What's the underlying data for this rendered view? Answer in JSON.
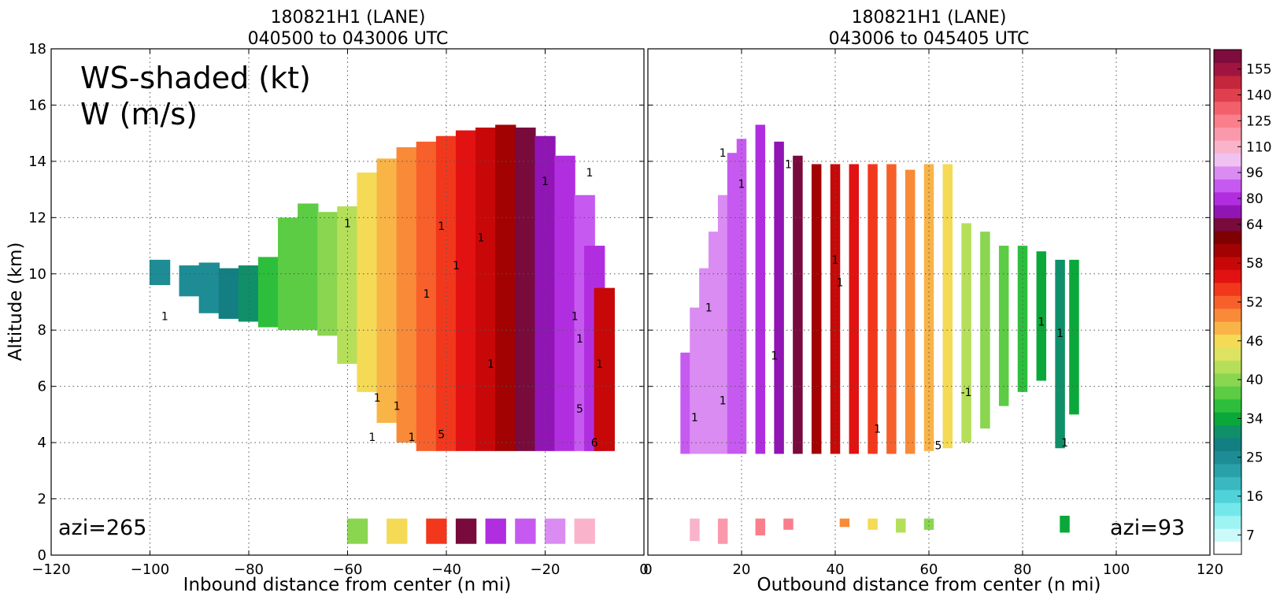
{
  "chart_data": [
    {
      "type": "heatmap",
      "title_line1": "180821H1 (LANE)",
      "title_line2": "040500 to 043006 UTC",
      "xlabel": "Inbound distance from center (n mi)",
      "ylabel": "Altitude (km)",
      "xlim": [
        -120,
        0
      ],
      "ylim": [
        0,
        18
      ],
      "xticks": [
        "−120",
        "−100",
        "−80",
        "−60",
        "−40",
        "−20",
        "0"
      ],
      "yticks": [
        "0",
        "2",
        "4",
        "6",
        "8",
        "10",
        "12",
        "14",
        "16",
        "18"
      ],
      "grid": true,
      "annotation_line1": "WS-shaded (kt)",
      "annotation_line2": "W (m/s)",
      "azimuth_label": "azi=265",
      "wind_speed_columns": [
        {
          "x": -98,
          "bottom": 9.6,
          "top": 10.5,
          "ws": 25
        },
        {
          "x": -92,
          "bottom": 9.2,
          "top": 10.3,
          "ws": 25
        },
        {
          "x": -88,
          "bottom": 8.6,
          "top": 10.4,
          "ws": 25
        },
        {
          "x": -84,
          "bottom": 8.4,
          "top": 10.2,
          "ws": 28
        },
        {
          "x": -80,
          "bottom": 8.3,
          "top": 10.3,
          "ws": 31
        },
        {
          "x": -76,
          "bottom": 8.1,
          "top": 10.6,
          "ws": 36
        },
        {
          "x": -72,
          "bottom": 8.0,
          "top": 12.0,
          "ws": 38
        },
        {
          "x": -68,
          "bottom": 8.0,
          "top": 12.5,
          "ws": 38
        },
        {
          "x": -64,
          "bottom": 7.8,
          "top": 12.2,
          "ws": 40
        },
        {
          "x": -60,
          "bottom": 6.8,
          "top": 12.4,
          "ws": 43
        },
        {
          "x": -56,
          "bottom": 5.8,
          "top": 13.6,
          "ws": 46
        },
        {
          "x": -52,
          "bottom": 4.7,
          "top": 14.1,
          "ws": 48
        },
        {
          "x": -48,
          "bottom": 4.0,
          "top": 14.5,
          "ws": 50
        },
        {
          "x": -44,
          "bottom": 3.7,
          "top": 14.7,
          "ws": 52
        },
        {
          "x": -40,
          "bottom": 3.7,
          "top": 14.9,
          "ws": 54
        },
        {
          "x": -36,
          "bottom": 3.7,
          "top": 15.1,
          "ws": 56
        },
        {
          "x": -32,
          "bottom": 3.7,
          "top": 15.2,
          "ws": 58
        },
        {
          "x": -28,
          "bottom": 3.7,
          "top": 15.3,
          "ws": 60
        },
        {
          "x": -24,
          "bottom": 3.7,
          "top": 15.2,
          "ws": 64
        },
        {
          "x": -20,
          "bottom": 3.7,
          "top": 14.9,
          "ws": 72
        },
        {
          "x": -16,
          "bottom": 3.7,
          "top": 14.2,
          "ws": 80
        },
        {
          "x": -12,
          "bottom": 3.7,
          "top": 12.8,
          "ws": 90
        },
        {
          "x": -10,
          "bottom": 3.7,
          "top": 11.0,
          "ws": 80
        },
        {
          "x": -8,
          "bottom": 3.7,
          "top": 9.5,
          "ws": 58
        }
      ],
      "low_level_columns": [
        {
          "x": -58,
          "bottom": 0.4,
          "top": 1.3,
          "ws": 40
        },
        {
          "x": -50,
          "bottom": 0.4,
          "top": 1.3,
          "ws": 46
        },
        {
          "x": -42,
          "bottom": 0.4,
          "top": 1.3,
          "ws": 54
        },
        {
          "x": -36,
          "bottom": 0.4,
          "top": 1.3,
          "ws": 64
        },
        {
          "x": -30,
          "bottom": 0.4,
          "top": 1.3,
          "ws": 80
        },
        {
          "x": -24,
          "bottom": 0.4,
          "top": 1.3,
          "ws": 90
        },
        {
          "x": -18,
          "bottom": 0.4,
          "top": 1.3,
          "ws": 96
        },
        {
          "x": -12,
          "bottom": 0.4,
          "top": 1.3,
          "ws": 110
        }
      ],
      "contour_labels": [
        {
          "x": -97,
          "y": 8.5,
          "text": "1"
        },
        {
          "x": -60,
          "y": 11.8,
          "text": "1"
        },
        {
          "x": -41,
          "y": 11.7,
          "text": "1"
        },
        {
          "x": -38,
          "y": 10.3,
          "text": "1"
        },
        {
          "x": -33,
          "y": 11.3,
          "text": "1"
        },
        {
          "x": -44,
          "y": 9.3,
          "text": "1"
        },
        {
          "x": -54,
          "y": 5.6,
          "text": "1"
        },
        {
          "x": -55,
          "y": 4.2,
          "text": "1"
        },
        {
          "x": -50,
          "y": 5.3,
          "text": "1"
        },
        {
          "x": -47,
          "y": 4.2,
          "text": "1"
        },
        {
          "x": -41,
          "y": 4.3,
          "text": "5"
        },
        {
          "x": -31,
          "y": 6.8,
          "text": "1"
        },
        {
          "x": -14,
          "y": 8.5,
          "text": "1"
        },
        {
          "x": -13,
          "y": 7.7,
          "text": "1"
        },
        {
          "x": -13,
          "y": 5.2,
          "text": "5"
        },
        {
          "x": -10,
          "y": 4.0,
          "text": "6"
        },
        {
          "x": -9,
          "y": 6.8,
          "text": "1"
        },
        {
          "x": -11,
          "y": 13.6,
          "text": "1"
        },
        {
          "x": -20,
          "y": 13.3,
          "text": "1"
        }
      ]
    },
    {
      "type": "heatmap",
      "title_line1": "180821H1 (LANE)",
      "title_line2": "043006 to 045405 UTC",
      "xlabel": "Outbound distance from center (n mi)",
      "xlim": [
        0,
        120
      ],
      "ylim": [
        0,
        18
      ],
      "xticks": [
        "0",
        "20",
        "40",
        "60",
        "80",
        "100",
        "120"
      ],
      "grid": true,
      "azimuth_label": "azi=93",
      "wind_speed_columns": [
        {
          "x": 8,
          "bottom": 3.6,
          "top": 7.2,
          "ws": 90
        },
        {
          "x": 10,
          "bottom": 3.6,
          "top": 8.8,
          "ws": 96
        },
        {
          "x": 12,
          "bottom": 3.6,
          "top": 10.2,
          "ws": 96
        },
        {
          "x": 14,
          "bottom": 3.6,
          "top": 11.5,
          "ws": 96
        },
        {
          "x": 16,
          "bottom": 3.6,
          "top": 12.8,
          "ws": 96
        },
        {
          "x": 18,
          "bottom": 3.6,
          "top": 14.3,
          "ws": 90
        },
        {
          "x": 20,
          "bottom": 3.6,
          "top": 14.8,
          "ws": 90
        },
        {
          "x": 24,
          "bottom": 3.6,
          "top": 15.3,
          "ws": 80
        },
        {
          "x": 28,
          "bottom": 3.6,
          "top": 14.7,
          "ws": 72
        },
        {
          "x": 32,
          "bottom": 3.6,
          "top": 14.2,
          "ws": 64
        },
        {
          "x": 36,
          "bottom": 3.6,
          "top": 13.9,
          "ws": 60
        },
        {
          "x": 40,
          "bottom": 3.6,
          "top": 13.9,
          "ws": 58
        },
        {
          "x": 44,
          "bottom": 3.6,
          "top": 13.9,
          "ws": 56
        },
        {
          "x": 48,
          "bottom": 3.6,
          "top": 13.9,
          "ws": 54
        },
        {
          "x": 52,
          "bottom": 3.6,
          "top": 13.9,
          "ws": 52
        },
        {
          "x": 56,
          "bottom": 3.6,
          "top": 13.7,
          "ws": 50
        },
        {
          "x": 60,
          "bottom": 3.7,
          "top": 13.9,
          "ws": 48
        },
        {
          "x": 64,
          "bottom": 3.8,
          "top": 13.9,
          "ws": 46
        },
        {
          "x": 68,
          "bottom": 4.0,
          "top": 11.8,
          "ws": 43
        },
        {
          "x": 72,
          "bottom": 4.5,
          "top": 11.5,
          "ws": 40
        },
        {
          "x": 76,
          "bottom": 5.3,
          "top": 11.0,
          "ws": 38
        },
        {
          "x": 80,
          "bottom": 5.8,
          "top": 11.0,
          "ws": 36
        },
        {
          "x": 84,
          "bottom": 6.2,
          "top": 10.8,
          "ws": 34
        },
        {
          "x": 88,
          "bottom": 3.8,
          "top": 10.5,
          "ws": 31
        },
        {
          "x": 91,
          "bottom": 5.0,
          "top": 10.5,
          "ws": 34
        }
      ],
      "low_level_columns": [
        {
          "x": 10,
          "bottom": 0.5,
          "top": 1.3,
          "ws": 110
        },
        {
          "x": 16,
          "bottom": 0.4,
          "top": 1.3,
          "ws": 118
        },
        {
          "x": 24,
          "bottom": 0.7,
          "top": 1.3,
          "ws": 130
        },
        {
          "x": 30,
          "bottom": 0.9,
          "top": 1.3,
          "ws": 125
        },
        {
          "x": 42,
          "bottom": 1.0,
          "top": 1.3,
          "ws": 50
        },
        {
          "x": 48,
          "bottom": 0.9,
          "top": 1.3,
          "ws": 46
        },
        {
          "x": 54,
          "bottom": 0.8,
          "top": 1.3,
          "ws": 42
        },
        {
          "x": 60,
          "bottom": 0.9,
          "top": 1.3,
          "ws": 40
        },
        {
          "x": 89,
          "bottom": 0.8,
          "top": 1.4,
          "ws": 34
        }
      ],
      "contour_labels": [
        {
          "x": 16,
          "y": 14.3,
          "text": "1"
        },
        {
          "x": 20,
          "y": 13.2,
          "text": "1"
        },
        {
          "x": 30,
          "y": 13.9,
          "text": "1"
        },
        {
          "x": 13,
          "y": 8.8,
          "text": "1"
        },
        {
          "x": 40,
          "y": 10.5,
          "text": "1"
        },
        {
          "x": 41,
          "y": 9.7,
          "text": "1"
        },
        {
          "x": 27,
          "y": 7.1,
          "text": "1"
        },
        {
          "x": 16,
          "y": 5.5,
          "text": "1"
        },
        {
          "x": 10,
          "y": 4.9,
          "text": "1"
        },
        {
          "x": 49,
          "y": 4.5,
          "text": "1"
        },
        {
          "x": 62,
          "y": 3.9,
          "text": "5"
        },
        {
          "x": 68,
          "y": 5.8,
          "text": "-1"
        },
        {
          "x": 84,
          "y": 8.3,
          "text": "1"
        },
        {
          "x": 88,
          "y": 7.9,
          "text": "1"
        },
        {
          "x": 89,
          "y": 4.0,
          "text": "1"
        }
      ]
    }
  ],
  "colorbar": {
    "ticks": [
      "7",
      "16",
      "25",
      "34",
      "40",
      "46",
      "52",
      "58",
      "64",
      "80",
      "96",
      "110",
      "125",
      "140",
      "155"
    ],
    "levels": [
      {
        "value": 4,
        "color": "#ffffff"
      },
      {
        "value": 7,
        "color": "#ccfafa"
      },
      {
        "value": 10,
        "color": "#9ef3f3"
      },
      {
        "value": 13,
        "color": "#72e8ea"
      },
      {
        "value": 16,
        "color": "#4fd3d8"
      },
      {
        "value": 19,
        "color": "#39b8c0"
      },
      {
        "value": 22,
        "color": "#2aa0a8"
      },
      {
        "value": 25,
        "color": "#1e8c94"
      },
      {
        "value": 28,
        "color": "#137f82"
      },
      {
        "value": 31,
        "color": "#0f9068"
      },
      {
        "value": 34,
        "color": "#0aa83a"
      },
      {
        "value": 36,
        "color": "#2dbf3c"
      },
      {
        "value": 38,
        "color": "#5ccc45"
      },
      {
        "value": 40,
        "color": "#8ad650"
      },
      {
        "value": 42,
        "color": "#b5df5a"
      },
      {
        "value": 44,
        "color": "#dde360"
      },
      {
        "value": 46,
        "color": "#f4da55"
      },
      {
        "value": 48,
        "color": "#f8b447"
      },
      {
        "value": 50,
        "color": "#f98a38"
      },
      {
        "value": 52,
        "color": "#f7602b"
      },
      {
        "value": 54,
        "color": "#f2381c"
      },
      {
        "value": 56,
        "color": "#e21212"
      },
      {
        "value": 58,
        "color": "#c80808"
      },
      {
        "value": 60,
        "color": "#a30202"
      },
      {
        "value": 62,
        "color": "#7e0000"
      },
      {
        "value": 64,
        "color": "#780a3c"
      },
      {
        "value": 72,
        "color": "#9015b4"
      },
      {
        "value": 80,
        "color": "#b12ee0"
      },
      {
        "value": 88,
        "color": "#c65af0"
      },
      {
        "value": 96,
        "color": "#da8cf2"
      },
      {
        "value": 103,
        "color": "#f0c2f2"
      },
      {
        "value": 110,
        "color": "#f9b4cc"
      },
      {
        "value": 118,
        "color": "#fa99ac"
      },
      {
        "value": 125,
        "color": "#f97f8c"
      },
      {
        "value": 132,
        "color": "#f2606c"
      },
      {
        "value": 140,
        "color": "#e0404e"
      },
      {
        "value": 148,
        "color": "#c4263c"
      },
      {
        "value": 155,
        "color": "#a01440"
      },
      {
        "value": 162,
        "color": "#7e0c3c"
      }
    ]
  }
}
